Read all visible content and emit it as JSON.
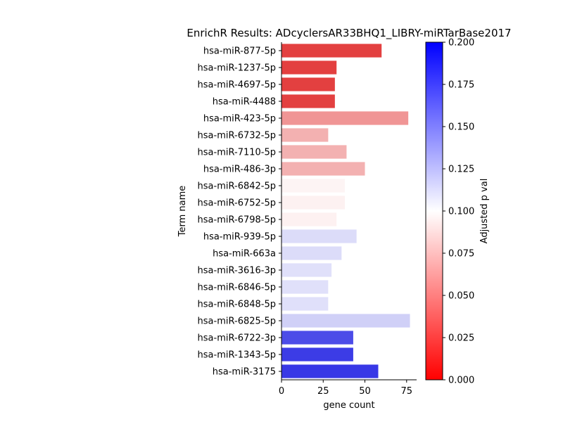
{
  "chart_data": {
    "type": "bar",
    "orientation": "horizontal",
    "title": "EnrichR Results: ADcyclersAR33BHQ1_LIBRY-miRTarBase2017",
    "xlabel": "gene count",
    "ylabel": "Term name",
    "xlim": [
      0,
      81
    ],
    "xticks": [
      0,
      25,
      50,
      75
    ],
    "grid": false,
    "categories": [
      "hsa-miR-877-5p",
      "hsa-miR-1237-5p",
      "hsa-miR-4697-5p",
      "hsa-miR-4488",
      "hsa-miR-423-5p",
      "hsa-miR-6732-5p",
      "hsa-miR-7110-5p",
      "hsa-miR-486-3p",
      "hsa-miR-6842-5p",
      "hsa-miR-6752-5p",
      "hsa-miR-6798-5p",
      "hsa-miR-939-5p",
      "hsa-miR-663a",
      "hsa-miR-3616-3p",
      "hsa-miR-6846-5p",
      "hsa-miR-6848-5p",
      "hsa-miR-6825-5p",
      "hsa-miR-6722-3p",
      "hsa-miR-1343-5p",
      "hsa-miR-3175"
    ],
    "values": [
      60,
      33,
      32,
      32,
      76,
      28,
      39,
      50,
      38,
      38,
      33,
      45,
      36,
      30,
      28,
      28,
      77,
      43,
      43,
      58
    ],
    "bar_colors": [
      "#e34040",
      "#e34040",
      "#e34040",
      "#e34040",
      "#f09595",
      "#f3b1b1",
      "#f3b1b1",
      "#f3b1b1",
      "#fdf4f4",
      "#fdf1f1",
      "#fdf1f1",
      "#dcdcf9",
      "#dcdcf9",
      "#e0e0fa",
      "#e0e0fa",
      "#e0e0fa",
      "#d0d0f7",
      "#4c4ce8",
      "#3c3ce6",
      "#3838e6"
    ],
    "colorbar": {
      "label": "Adjusted p val",
      "range": [
        0.0,
        0.2
      ],
      "ticks": [
        "0.000",
        "0.025",
        "0.050",
        "0.075",
        "0.100",
        "0.125",
        "0.150",
        "0.175",
        "0.200"
      ],
      "colors": [
        "#ff0000",
        "#ffffff",
        "#0000ff"
      ]
    }
  }
}
